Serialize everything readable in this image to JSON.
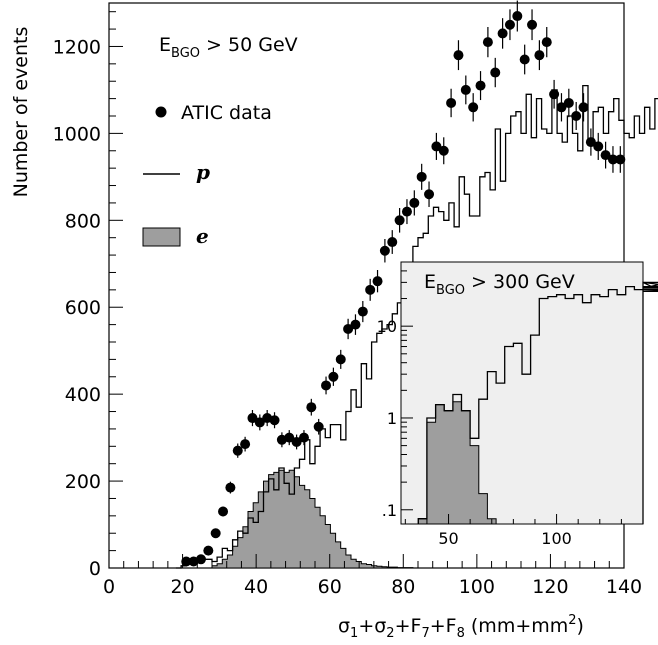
{
  "chart_data": [
    {
      "type": "histogram",
      "xlabel": {
        "base": "σ",
        "s1": "1",
        "plus1": "+σ",
        "s2": "2",
        "plus2": "+F",
        "s7": "7",
        "plus3": "+F",
        "s8": "8",
        "unit_open": " (mm+mm",
        "unit_sup": "2",
        "unit_close": ")"
      },
      "ylabel": "Number of events",
      "xlim": [
        0,
        140
      ],
      "ylim": [
        0,
        1300
      ],
      "x_ticks": [
        "0",
        "20",
        "40",
        "60",
        "80",
        "100",
        "120",
        "140"
      ],
      "y_ticks": [
        "0",
        "200",
        "400",
        "600",
        "800",
        "1000",
        "1200"
      ],
      "annotation": {
        "prefix": "E",
        "sub": "BGO",
        "suffix": " > 50 GeV"
      },
      "bin_width": 1.4,
      "series": [
        {
          "name": "ATIC data",
          "marker": "circle",
          "x": [
            21,
            23,
            25,
            27,
            29,
            31,
            33,
            35,
            37,
            39,
            41,
            43,
            45,
            47,
            49,
            51,
            53,
            55,
            57,
            59,
            61,
            63,
            65,
            67,
            69,
            71,
            73,
            75,
            77,
            79,
            81,
            83,
            85,
            87,
            89,
            91,
            93,
            95,
            97,
            99,
            101,
            103,
            105,
            107,
            109,
            111,
            113,
            115,
            117,
            119,
            121,
            123,
            125,
            127,
            129,
            131,
            133,
            135,
            137,
            139
          ],
          "y": [
            15,
            15,
            20,
            40,
            80,
            130,
            185,
            270,
            285,
            345,
            335,
            345,
            340,
            295,
            300,
            290,
            300,
            370,
            325,
            420,
            440,
            480,
            550,
            560,
            590,
            640,
            660,
            730,
            750,
            800,
            820,
            840,
            900,
            860,
            970,
            960,
            1070,
            1180,
            1100,
            1060,
            1110,
            1210,
            1140,
            1230,
            1250,
            1270,
            1170,
            1250,
            1180,
            1210,
            1090,
            1060,
            1070,
            1040,
            1060,
            980,
            970,
            950,
            940,
            940
          ]
        },
        {
          "name": "p",
          "style": "step",
          "x_start": 18.2,
          "values": [
            0,
            5,
            10,
            10,
            15,
            20,
            20,
            15,
            25,
            45,
            40,
            65,
            85,
            80,
            115,
            105,
            130,
            175,
            205,
            180,
            230,
            195,
            170,
            230,
            250,
            295,
            240,
            280,
            320,
            300,
            330,
            330,
            295,
            360,
            410,
            370,
            470,
            435,
            520,
            540,
            550,
            560,
            585,
            610,
            640,
            700,
            740,
            760,
            770,
            810,
            830,
            820,
            800,
            840,
            785,
            900,
            860,
            810,
            810,
            900,
            910,
            870,
            1010,
            890,
            1000,
            1040,
            1050,
            1000,
            1090,
            990,
            1080,
            1010,
            1000,
            1100,
            1000,
            980,
            1040,
            1000,
            960,
            1110,
            980,
            1050,
            1060,
            1000,
            1050,
            1080,
            1030,
            1000,
            990,
            1040,
            1000,
            1060,
            1010,
            1080,
            1000,
            1000,
            930,
            1000,
            950,
            940,
            1050,
            1000,
            1050,
            1010,
            950,
            980,
            990,
            1000,
            1000,
            950
          ]
        },
        {
          "name": "e",
          "style": "filled-step",
          "color": "#9e9e9e",
          "x_start": 18.2,
          "values": [
            0,
            0,
            0,
            0,
            0,
            0,
            0,
            5,
            10,
            20,
            30,
            50,
            70,
            95,
            130,
            150,
            175,
            200,
            215,
            220,
            225,
            220,
            225,
            210,
            190,
            180,
            160,
            140,
            120,
            100,
            80,
            60,
            45,
            30,
            20,
            15,
            10,
            8,
            5,
            4,
            3,
            2,
            2,
            1,
            1,
            1,
            0
          ]
        }
      ],
      "legend": {
        "dot_label": "ATIC data",
        "p_label": "p",
        "e_label": "e",
        "position": "top-left"
      }
    },
    {
      "type": "histogram",
      "role": "inset",
      "yscale": "log",
      "xlim": [
        28,
        140
      ],
      "ylim": [
        0.07,
        50
      ],
      "x_ticks": [
        "50",
        "100"
      ],
      "y_ticks": [
        ".1",
        "1",
        "10"
      ],
      "background": "#efefef",
      "annotation": {
        "prefix": "E",
        "sub": "BGO",
        "suffix": " > 300 GeV"
      },
      "bin_width": 4,
      "series": [
        {
          "name": "p",
          "style": "step",
          "x_start": 36,
          "values": [
            0.08,
            1,
            1.4,
            1.2,
            1.8,
            1.2,
            0.6,
            1.6,
            3.2,
            2.4,
            6,
            6.5,
            3,
            8,
            20,
            21,
            22,
            20,
            22,
            18,
            22,
            21,
            25,
            22,
            27,
            25,
            30,
            27,
            26,
            30,
            27,
            24,
            25
          ]
        },
        {
          "name": "e",
          "style": "filled-step",
          "color": "#9e9e9e",
          "x_start": 36,
          "values": [
            0.08,
            0.9,
            1.4,
            1.2,
            1.5,
            1.2,
            0.5,
            0.15,
            0.08
          ]
        }
      ]
    }
  ]
}
